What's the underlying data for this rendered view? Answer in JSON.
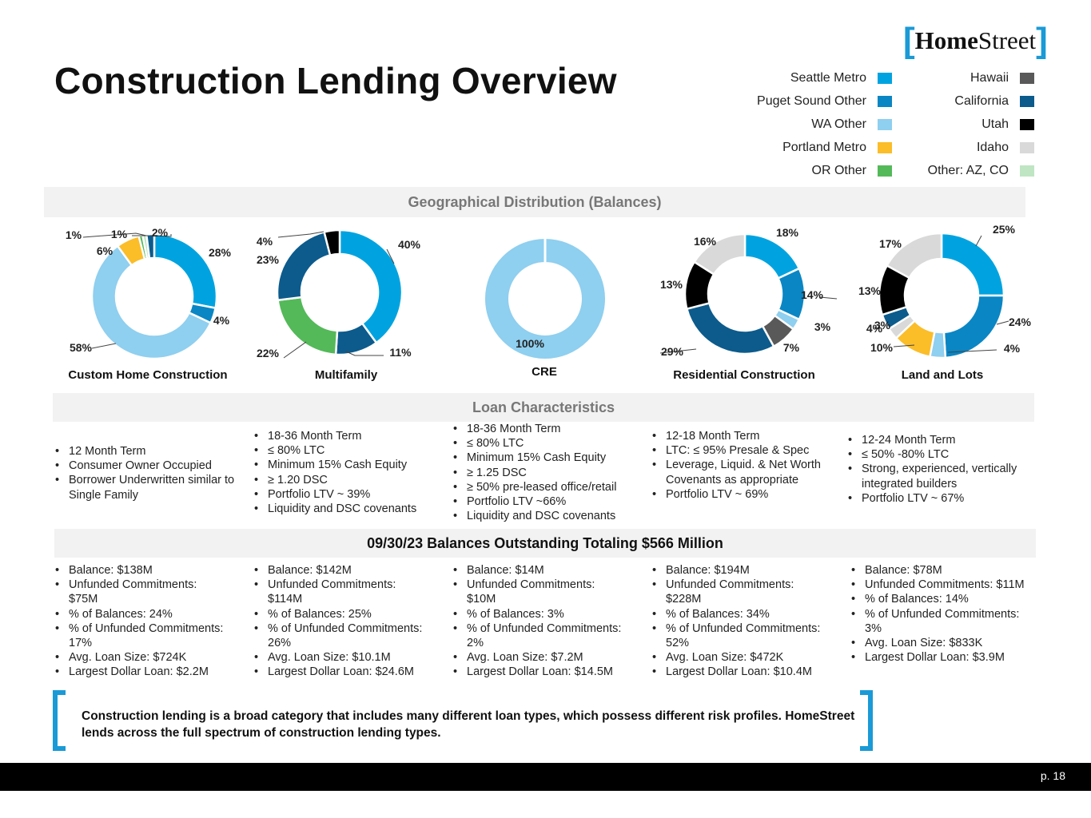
{
  "title": "Construction Lending Overview",
  "logo": {
    "word1": "Home",
    "word2": "Street"
  },
  "legend": [
    {
      "label": "Seattle Metro",
      "color": "#00a3e0"
    },
    {
      "label": "Puget Sound Other",
      "color": "#0a86c4"
    },
    {
      "label": "WA Other",
      "color": "#8fcfef"
    },
    {
      "label": "Portland Metro",
      "color": "#fbbd28"
    },
    {
      "label": "OR Other",
      "color": "#54b959"
    },
    {
      "label": "Hawaii",
      "color": "#595959"
    },
    {
      "label": "California",
      "color": "#0c5b8c"
    },
    {
      "label": "Utah",
      "color": "#000000"
    },
    {
      "label": "Idaho",
      "color": "#d9d9d9"
    },
    {
      "label": "Other: AZ, CO",
      "color": "#bfe5c3"
    }
  ],
  "sections": {
    "geo": "Geographical Distribution (Balances)",
    "loan": "Loan Characteristics",
    "balances": "09/30/23 Balances Outstanding Totaling $566 Million"
  },
  "chart_data": [
    {
      "type": "pie",
      "title": "Custom Home Construction",
      "categories": [
        "Seattle Metro",
        "Puget Sound Other",
        "WA Other",
        "Portland Metro",
        "OR Other",
        "Other: AZ, CO",
        "California"
      ],
      "values": [
        28,
        4,
        58,
        6,
        1,
        1,
        2
      ],
      "labels": [
        "28%",
        "4%",
        "58%",
        "6%",
        "1%",
        "1%",
        "2%"
      ]
    },
    {
      "type": "pie",
      "title": "Multifamily",
      "categories": [
        "Seattle Metro",
        "California",
        "OR Other",
        "California",
        "Utah"
      ],
      "values": [
        40,
        11,
        22,
        23,
        4
      ],
      "labels": [
        "40%",
        "11%",
        "22%",
        "23%",
        "4%"
      ]
    },
    {
      "type": "pie",
      "title": "CRE",
      "categories": [
        "WA Other"
      ],
      "values": [
        100
      ],
      "labels": [
        "100%"
      ]
    },
    {
      "type": "pie",
      "title": "Residential Construction",
      "categories": [
        "Seattle Metro",
        "Puget Sound Other",
        "WA Other",
        "Hawaii",
        "California",
        "Utah",
        "Idaho"
      ],
      "values": [
        18,
        14,
        3,
        7,
        29,
        13,
        16
      ],
      "labels": [
        "18%",
        "14%",
        "3%",
        "7%",
        "29%",
        "13%",
        "16%"
      ]
    },
    {
      "type": "pie",
      "title": "Land and Lots",
      "categories": [
        "Seattle Metro",
        "Puget Sound Other",
        "WA Other",
        "Portland Metro",
        "Idaho",
        "California",
        "Utah",
        "Idaho"
      ],
      "values": [
        25,
        24,
        4,
        10,
        3,
        4,
        13,
        17
      ],
      "labels": [
        "25%",
        "24%",
        "4%",
        "10%",
        "3%",
        "4%",
        "13%",
        "17%"
      ]
    }
  ],
  "loan_characteristics": [
    [
      "12 Month Term",
      "Consumer Owner Occupied",
      "Borrower Underwritten similar to Single Family"
    ],
    [
      "18-36 Month Term",
      "≤ 80% LTC",
      "Minimum 15% Cash Equity",
      "≥ 1.20 DSC",
      "Portfolio LTV ~ 39%",
      "Liquidity and DSC covenants"
    ],
    [
      "18-36 Month Term",
      "≤ 80% LTC",
      "Minimum 15% Cash Equity",
      "≥ 1.25 DSC",
      "≥  50% pre-leased office/retail",
      "Portfolio LTV ~66%",
      "Liquidity and DSC covenants"
    ],
    [
      "12-18 Month Term",
      "LTC:  ≤ 95%  Presale & Spec",
      "Leverage, Liquid. & Net Worth Covenants as appropriate",
      "Portfolio LTV ~ 69%"
    ],
    [
      "12-24 Month Term",
      "≤ 50% -80% LTC",
      " Strong, experienced, vertically integrated builders",
      "Portfolio LTV ~ 67%"
    ]
  ],
  "balances": [
    [
      "Balance: $138M",
      "Unfunded Commitments: $75M",
      "% of Balances: 24%",
      "% of Unfunded Commitments: 17%",
      "Avg. Loan Size: $724K",
      "Largest Dollar Loan:  $2.2M"
    ],
    [
      "Balance: $142M",
      "Unfunded Commitments: $114M",
      "% of Balances: 25%",
      "% of Unfunded Commitments: 26%",
      "Avg. Loan Size: $10.1M",
      "Largest Dollar Loan: $24.6M"
    ],
    [
      "Balance: $14M",
      "Unfunded Commitments: $10M",
      "% of Balances: 3%",
      "% of Unfunded Commitments: 2%",
      "Avg. Loan Size: $7.2M",
      "Largest Dollar Loan: $14.5M"
    ],
    [
      "Balance: $194M",
      "Unfunded Commitments: $228M",
      "% of Balances: 34%",
      "% of Unfunded Commitments: 52%",
      "Avg. Loan Size: $472K",
      "Largest Dollar Loan: $10.4M"
    ],
    [
      "Balance: $78M",
      "Unfunded Commitments: $11M",
      "% of Balances: 14%",
      "% of Unfunded Commitments: 3%",
      "Avg. Loan Size: $833K",
      "Largest Dollar Loan: $3.9M"
    ]
  ],
  "footer_note": "Construction lending is a broad category that includes many different loan types, which possess different risk profiles. HomeStreet lends across the full spectrum of construction lending types.",
  "page_number": "p. 18"
}
